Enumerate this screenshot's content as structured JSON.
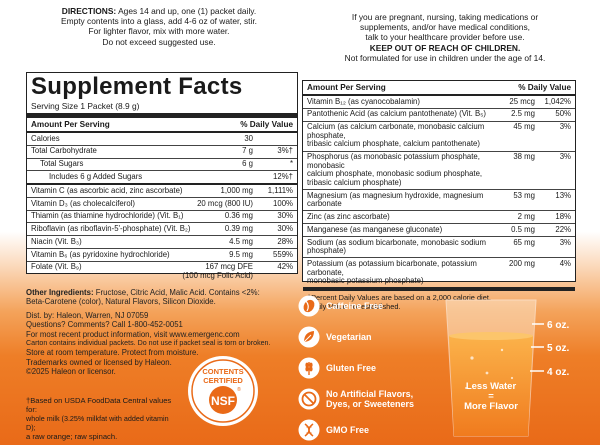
{
  "directions": {
    "label": "DIRECTIONS:",
    "line1": " Ages 14 and up, one (1) packet daily.",
    "line2": "Empty contents into a glass, add 4-6 oz of water, stir.",
    "line3": "For lighter flavor, mix with more water.",
    "line4": "Do not exceed suggested use."
  },
  "warning": {
    "line1": "If you are pregnant, nursing, taking medications or",
    "line2": "supplements, and/or have medical conditions,",
    "line3": "talk to your healthcare provider before use.",
    "line4": "KEEP OUT OF REACH OF CHILDREN.",
    "line5": "Not formulated for use in children under the age of 14."
  },
  "facts": {
    "title": "Supplement Facts",
    "serving": "Serving Size 1 Packet (8.9 g)",
    "header_amount": "Amount Per Serving",
    "header_dv": "% Daily Value",
    "left_rows": [
      {
        "name": "Calories",
        "amount": "30",
        "dv": ""
      },
      {
        "name": "Total Carbohydrate",
        "amount": "7 g",
        "dv": "3%†"
      },
      {
        "name": "Total Sugars",
        "amount": "6 g",
        "dv": "*"
      },
      {
        "name": "Includes 6 g Added Sugars",
        "amount": "",
        "dv": "12%†"
      },
      {
        "name": "Vitamin C (as ascorbic acid, zinc ascorbate)",
        "amount": "1,000 mg",
        "dv": "1,111%"
      },
      {
        "name": "Vitamin D₃ (as cholecalciferol)",
        "amount": "20 mcg (800 IU)",
        "dv": "100%"
      },
      {
        "name": "Thiamin (as thiamine hydrochloride) (Vit. B₁)",
        "amount": "0.36 mg",
        "dv": "30%"
      },
      {
        "name": "Riboflavin (as riboflavin-5'-phosphate) (Vit. B₂)",
        "amount": "0.39 mg",
        "dv": "30%"
      },
      {
        "name": "Niacin (Vit. B₃)",
        "amount": "4.5 mg",
        "dv": "28%"
      },
      {
        "name": "Vitamin B₆ (as pyridoxine hydrochloride)",
        "amount": "9.5 mg",
        "dv": "559%"
      },
      {
        "name": "Folate (Vit. B₉)",
        "amount": "167 mcg DFE",
        "amount2": "(100 mcg Folic Acid)",
        "dv": "42%"
      }
    ],
    "right_rows": [
      {
        "name": "Vitamin B₁₂ (as cyanocobalamin)",
        "amount": "25 mcg",
        "dv": "1,042%"
      },
      {
        "name": "Pantothenic Acid (as calcium pantothenate) (Vit. B₅)",
        "amount": "2.5 mg",
        "dv": "50%"
      },
      {
        "name": "Calcium (as calcium carbonate, monobasic calcium phosphate,",
        "name2": "tribasic calcium phosphate, calcium pantothenate)",
        "amount": "45 mg",
        "dv": "3%"
      },
      {
        "name": "Phosphorus (as monobasic potassium phosphate, monobasic",
        "name2": "calcium phosphate, monobasic sodium phosphate,",
        "name3": "tribasic calcium phosphate)",
        "amount": "38 mg",
        "dv": "3%"
      },
      {
        "name": "Magnesium (as magnesium hydroxide, magnesium carbonate",
        "amount": "53 mg",
        "dv": "13%"
      },
      {
        "name": "Zinc (as zinc ascorbate)",
        "amount": "2 mg",
        "dv": "18%"
      },
      {
        "name": "Manganese (as manganese gluconate)",
        "amount": "0.5 mg",
        "dv": "22%"
      },
      {
        "name": "Sodium (as sodium bicarbonate, monobasic sodium phosphate)",
        "amount": "65 mg",
        "dv": "3%"
      },
      {
        "name": "Potassium (as potassium bicarbonate, potassium carbonate,",
        "name2": "monobasic potassium phosphate)",
        "amount": "200 mg",
        "dv": "4%"
      }
    ],
    "note1": "†Percent Daily Values are based on a 2,000 calorie diet.",
    "note2": "*Daily Value not established."
  },
  "other": {
    "label": "Other Ingredients:",
    "line1": " Fructose, Citric Acid, Malic Acid. Contains <2%:",
    "line2": "Beta-Carotene (color), Natural Flavors, Silicon Dioxide.",
    "dist1": "Dist. by: Haleon, Warren, NJ 07059",
    "dist2": "Questions? Comments? Call 1-800-452-0051",
    "dist3": "For most recent product information, visit www.emergenc.com",
    "dist4": "Carton contains individual packets. Do not use if packet seal is torn or broken.",
    "dist5": "Store at room temperature. Protect from moisture.",
    "tm1": "Trademarks owned or licensed by Haleon.",
    "tm2": "©2025 Haleon or licensor."
  },
  "seal": {
    "top": "CONTENTS",
    "mid": "CERTIFIED",
    "logo": "NSF",
    "reg": "®"
  },
  "footnote": {
    "line1": "†Based on USDA FoodData Central values for:",
    "line2": "whole milk (3.25% milkfat with added vitamin D);",
    "line3": "a raw orange; raw spinach."
  },
  "features": [
    {
      "icon": "caffeine-free-icon",
      "label": "Caffeine Free"
    },
    {
      "icon": "vegetarian-leaf-icon",
      "label": "Vegetarian"
    },
    {
      "icon": "gluten-free-wheat-icon",
      "label": "Gluten Free"
    },
    {
      "icon": "no-artificial-icon",
      "label": "No Artificial Flavors,",
      "label2": "Dyes, or Sweeteners"
    },
    {
      "icon": "gmo-free-icon",
      "label": "GMO Free"
    }
  ],
  "glass": {
    "m6": "6 oz.",
    "m5": "5 oz.",
    "m4": "4 oz.",
    "text1": "Less Water",
    "arrow": "=",
    "text2": "More Flavor"
  },
  "colors": {
    "orange": "#ee7e27",
    "ink": "#1a1a1a"
  }
}
